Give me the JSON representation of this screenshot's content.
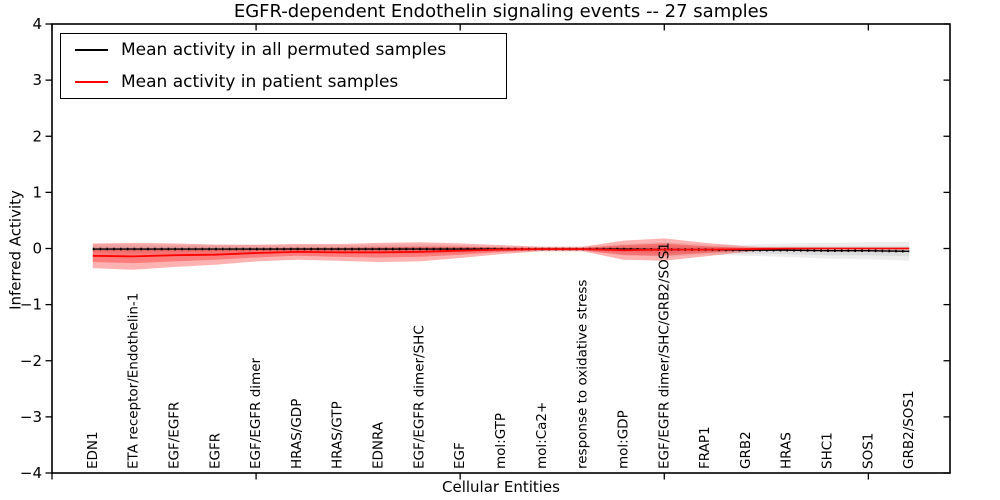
{
  "title": "EGFR-dependent Endothelin signaling events -- 27 samples",
  "legend": {
    "items": [
      {
        "label": "Mean activity in all permuted samples",
        "color": "#000000"
      },
      {
        "label": "Mean activity in patient samples",
        "color": "#ff0000"
      }
    ]
  },
  "axes": {
    "xlabel": "Cellular Entities",
    "ylabel": "Inferred Activity"
  },
  "chart_data": {
    "type": "line",
    "title": "EGFR-dependent Endothelin signaling events -- 27 samples",
    "xlabel": "Cellular Entities",
    "ylabel": "Inferred Activity",
    "ylim": [
      -4,
      4
    ],
    "yticks": [
      4,
      3,
      2,
      1,
      0,
      -1,
      -2,
      -3,
      -4
    ],
    "xlim": [
      0,
      22
    ],
    "xticks": [
      0,
      5,
      10,
      15,
      20
    ],
    "grid": false,
    "legend_position": "upper left",
    "categories": [
      "EDN1",
      "ETA receptor/Endothelin-1",
      "EGF/EGFR",
      "EGFR",
      "EGF/EGFR dimer",
      "HRAS/GDP",
      "HRAS/GTP",
      "EDNRA",
      "EGF/EGFR dimer/SHC",
      "EGF",
      "mol:GTP",
      "mol:Ca2+",
      "response to oxidative stress",
      "mol:GDP",
      "EGF/EGFR dimer/SHC/GRB2/SOS1",
      "FRAP1",
      "GRB2",
      "HRAS",
      "SHC1",
      "SOS1",
      "GRB2/SOS1"
    ],
    "series": [
      {
        "name": "Mean activity in all permuted samples",
        "role": "permuted",
        "color": "#000000",
        "band_color": "#000000",
        "band_alpha": 0.07,
        "values": [
          -0.01,
          -0.01,
          -0.01,
          -0.01,
          -0.01,
          -0.01,
          -0.01,
          -0.01,
          -0.01,
          -0.01,
          -0.01,
          -0.01,
          -0.01,
          -0.01,
          -0.02,
          -0.02,
          -0.03,
          -0.03,
          -0.04,
          -0.04,
          -0.05
        ],
        "std_inner": [
          0.05,
          0.05,
          0.05,
          0.05,
          0.04,
          0.04,
          0.04,
          0.05,
          0.05,
          0.04,
          0.03,
          0.02,
          0.02,
          0.05,
          0.07,
          0.05,
          0.06,
          0.07,
          0.08,
          0.08,
          0.09
        ],
        "std_outer": [
          0.09,
          0.09,
          0.08,
          0.08,
          0.07,
          0.07,
          0.07,
          0.08,
          0.09,
          0.07,
          0.05,
          0.04,
          0.04,
          0.09,
          0.13,
          0.09,
          0.1,
          0.12,
          0.14,
          0.15,
          0.17
        ]
      },
      {
        "name": "Mean activity in patient samples",
        "role": "patient",
        "color": "#ff0000",
        "band_color": "#ff0000",
        "band_alpha": 0.3,
        "values": [
          -0.13,
          -0.14,
          -0.12,
          -0.11,
          -0.08,
          -0.06,
          -0.07,
          -0.07,
          -0.06,
          -0.04,
          -0.02,
          -0.01,
          -0.01,
          -0.03,
          -0.02,
          -0.02,
          -0.01,
          0,
          0,
          0,
          0
        ],
        "std_inner": [
          0.11,
          0.12,
          0.11,
          0.09,
          0.08,
          0.07,
          0.08,
          0.09,
          0.09,
          0.07,
          0.04,
          0.02,
          0.02,
          0.09,
          0.11,
          0.06,
          0.02,
          0.01,
          0.01,
          0.01,
          0.01
        ],
        "std_outer": [
          0.22,
          0.24,
          0.21,
          0.18,
          0.15,
          0.14,
          0.15,
          0.17,
          0.17,
          0.13,
          0.08,
          0.04,
          0.04,
          0.17,
          0.2,
          0.12,
          0.05,
          0.01,
          0.01,
          0.01,
          0.01
        ]
      }
    ]
  }
}
